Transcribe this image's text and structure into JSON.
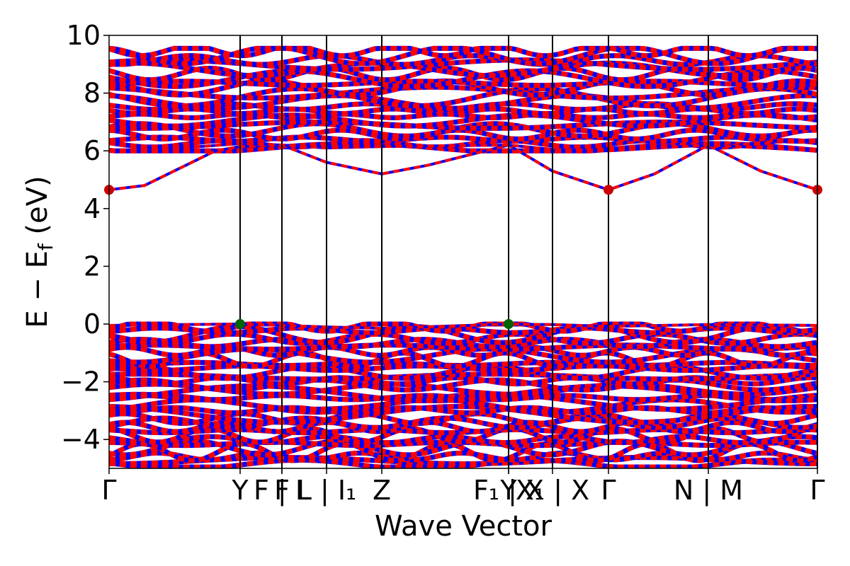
{
  "chart_data": {
    "type": "line",
    "title": "",
    "xlabel": "Wave Vector",
    "ylabel": "E − E_f (eV)",
    "ylim": [
      -5,
      10
    ],
    "yticks": [
      -4,
      -2,
      0,
      2,
      4,
      6,
      8,
      10
    ],
    "ytick_labels": [
      "−4",
      "−2",
      "0",
      "2",
      "4",
      "6",
      "8",
      "10"
    ],
    "grid": false,
    "legend": "none",
    "x_domain": [
      0,
      1
    ],
    "kpoints": [
      {
        "x": 0.0,
        "label": "Γ"
      },
      {
        "x": 0.185,
        "label": "Y"
      },
      {
        "x": 0.244,
        "label": "F"
      },
      {
        "x": 0.244,
        "label": "F | L"
      },
      {
        "x": 0.307,
        "label": "L | I₁"
      },
      {
        "x": 0.385,
        "label": "Z"
      },
      {
        "x": 0.564,
        "label": "F₁ | X"
      },
      {
        "x": 0.564,
        "label": "Y"
      },
      {
        "x": 0.626,
        "label": "X₁ | X"
      },
      {
        "x": 0.705,
        "label": "Γ"
      },
      {
        "x": 0.846,
        "label": "N | M"
      },
      {
        "x": 1.0,
        "label": "Γ"
      }
    ],
    "vlines": [
      0.185,
      0.244,
      0.307,
      0.385,
      0.564,
      0.626,
      0.705,
      0.846,
      1.0
    ],
    "colors": {
      "spin_up": "#0000ff",
      "spin_down": "#ff0000",
      "axes": "#000000",
      "vbm_marker": "#006400",
      "cbm_marker": "#cc0000"
    },
    "valence_band_maximum": {
      "energy": 0.0,
      "x": [
        0.185,
        0.564
      ]
    },
    "conduction_band_minimum": {
      "energy": 4.65,
      "x": [
        0.0,
        0.705,
        1.0
      ]
    },
    "series": [
      {
        "kind": "conduction_band_lowest",
        "x": [
          0.0,
          0.05,
          0.1,
          0.15,
          0.185,
          0.244,
          0.307,
          0.385,
          0.45,
          0.564,
          0.626,
          0.705,
          0.77,
          0.846,
          0.92,
          1.0
        ],
        "y": [
          4.65,
          4.8,
          5.4,
          6.0,
          6.15,
          6.2,
          5.6,
          5.2,
          5.5,
          6.2,
          5.3,
          4.65,
          5.2,
          6.2,
          5.3,
          4.65
        ]
      },
      {
        "kind": "conduction_band_second",
        "x": [
          0.0,
          0.1,
          0.185,
          0.244,
          0.307,
          0.385,
          0.564,
          0.626,
          0.705,
          0.846,
          1.0
        ],
        "y": [
          6.0,
          6.1,
          6.25,
          6.2,
          6.1,
          6.15,
          6.2,
          6.05,
          6.0,
          6.2,
          6.0
        ]
      },
      {
        "kind": "valence_band_top",
        "x": [
          0.0,
          0.1,
          0.185,
          0.244,
          0.307,
          0.385,
          0.564,
          0.626,
          0.705,
          0.846,
          1.0
        ],
        "y": [
          -0.05,
          -0.02,
          0.0,
          -0.05,
          -0.1,
          -0.15,
          0.0,
          -0.02,
          -0.08,
          -0.02,
          -0.05
        ]
      }
    ],
    "band_manifolds": [
      {
        "kind": "conduction_manifold",
        "energy_range": [
          6.0,
          9.55
        ]
      },
      {
        "kind": "valence_manifold",
        "energy_range": [
          -4.95,
          0.0
        ]
      }
    ]
  }
}
